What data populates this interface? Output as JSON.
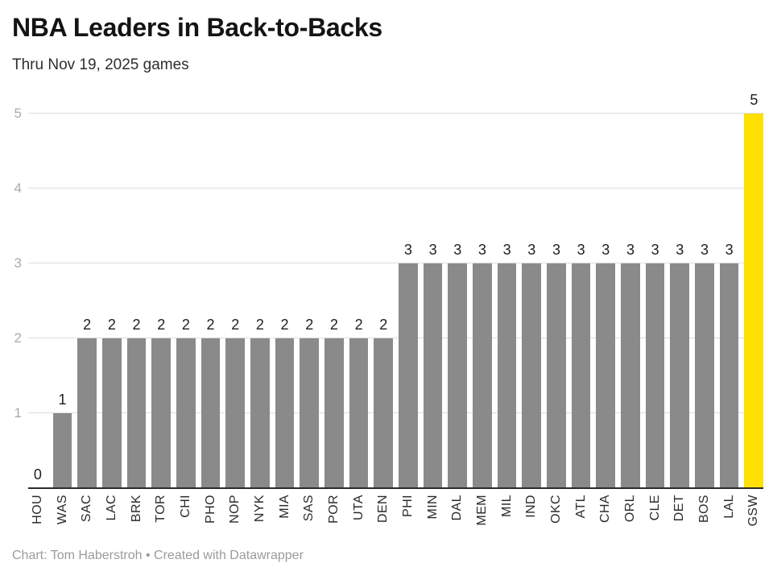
{
  "header": {
    "title": "NBA Leaders in Back-to-Backs",
    "subtitle": "Thru Nov 19, 2025 games"
  },
  "chart_data": {
    "type": "bar",
    "title": "NBA Leaders in Back-to-Backs",
    "subtitle": "Thru Nov 19, 2025 games",
    "categories": [
      "HOU",
      "WAS",
      "SAC",
      "LAC",
      "BRK",
      "TOR",
      "CHI",
      "PHO",
      "NOP",
      "NYK",
      "MIA",
      "SAS",
      "POR",
      "UTA",
      "DEN",
      "PHI",
      "MIN",
      "DAL",
      "MEM",
      "MIL",
      "IND",
      "OKC",
      "ATL",
      "CHA",
      "ORL",
      "CLE",
      "DET",
      "BOS",
      "LAL",
      "GSW"
    ],
    "values": [
      0,
      1,
      2,
      2,
      2,
      2,
      2,
      2,
      2,
      2,
      2,
      2,
      2,
      2,
      2,
      3,
      3,
      3,
      3,
      3,
      3,
      3,
      3,
      3,
      3,
      3,
      3,
      3,
      3,
      5
    ],
    "xlabel": "",
    "ylabel": "",
    "ylim": [
      0,
      5
    ],
    "yticks": [
      1,
      2,
      3,
      4,
      5
    ],
    "grid": true,
    "value_labels": true,
    "bar_color": "#8a8a8a",
    "highlight_category": "GSW",
    "highlight_color": "#ffe000",
    "axis_line_color": "#2b2b2b",
    "gridline_color": "#dddddd",
    "background": "#ffffff"
  },
  "footer": {
    "credit": "Chart: Tom Haberstroh • Created with Datawrapper"
  }
}
